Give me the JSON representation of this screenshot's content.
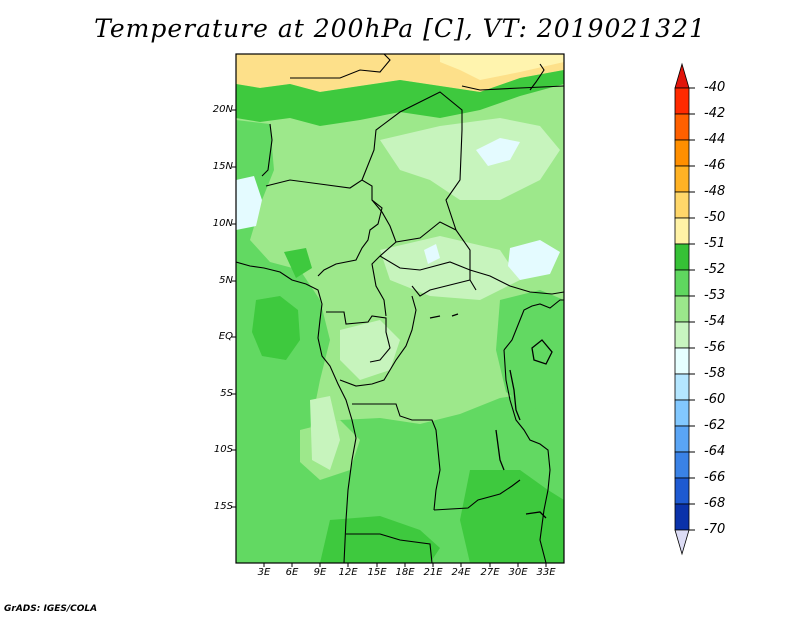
{
  "title": "Temperature at 200hPa [C], VT: 2019021321",
  "credit": "GrADS: IGES/COLA",
  "latitude_labels": [
    "20N",
    "15N",
    "10N",
    "5N",
    "EQ",
    "5S",
    "10S",
    "15S"
  ],
  "longitude_labels": [
    "3E",
    "6E",
    "9E",
    "12E",
    "15E",
    "18E",
    "21E",
    "24E",
    "27E",
    "30E",
    "33E"
  ],
  "colorbar": {
    "labels": [
      "-40",
      "-42",
      "-44",
      "-46",
      "-48",
      "-50",
      "-51",
      "-52",
      "-53",
      "-54",
      "-56",
      "-58",
      "-60",
      "-62",
      "-64",
      "-66",
      "-68",
      "-70"
    ],
    "colors": [
      "#ff2a00",
      "#ff6000",
      "#ff8f00",
      "#ffb224",
      "#ffd76a",
      "#fff2a6",
      "#36c136",
      "#5fd75f",
      "#9be78b",
      "#c8f5c0",
      "#e6ffff",
      "#b4e6ff",
      "#82c8ff",
      "#5aa5f5",
      "#3a82e6",
      "#1e5ad2",
      "#0a32aa",
      "#050a6e"
    ],
    "top_arrow_color": "#e1140a",
    "bottom_arrow_color": "#dcdcf5"
  },
  "map_colors": {
    "yellow": "#fde08a",
    "pale_yellow": "#fff4ae",
    "green_dark": "#3ec93e",
    "green_mid": "#62d962",
    "green_light": "#9de88b",
    "green_pale": "#c7f4bd",
    "cyan_pale": "#e4fbff",
    "border": "#000000"
  }
}
